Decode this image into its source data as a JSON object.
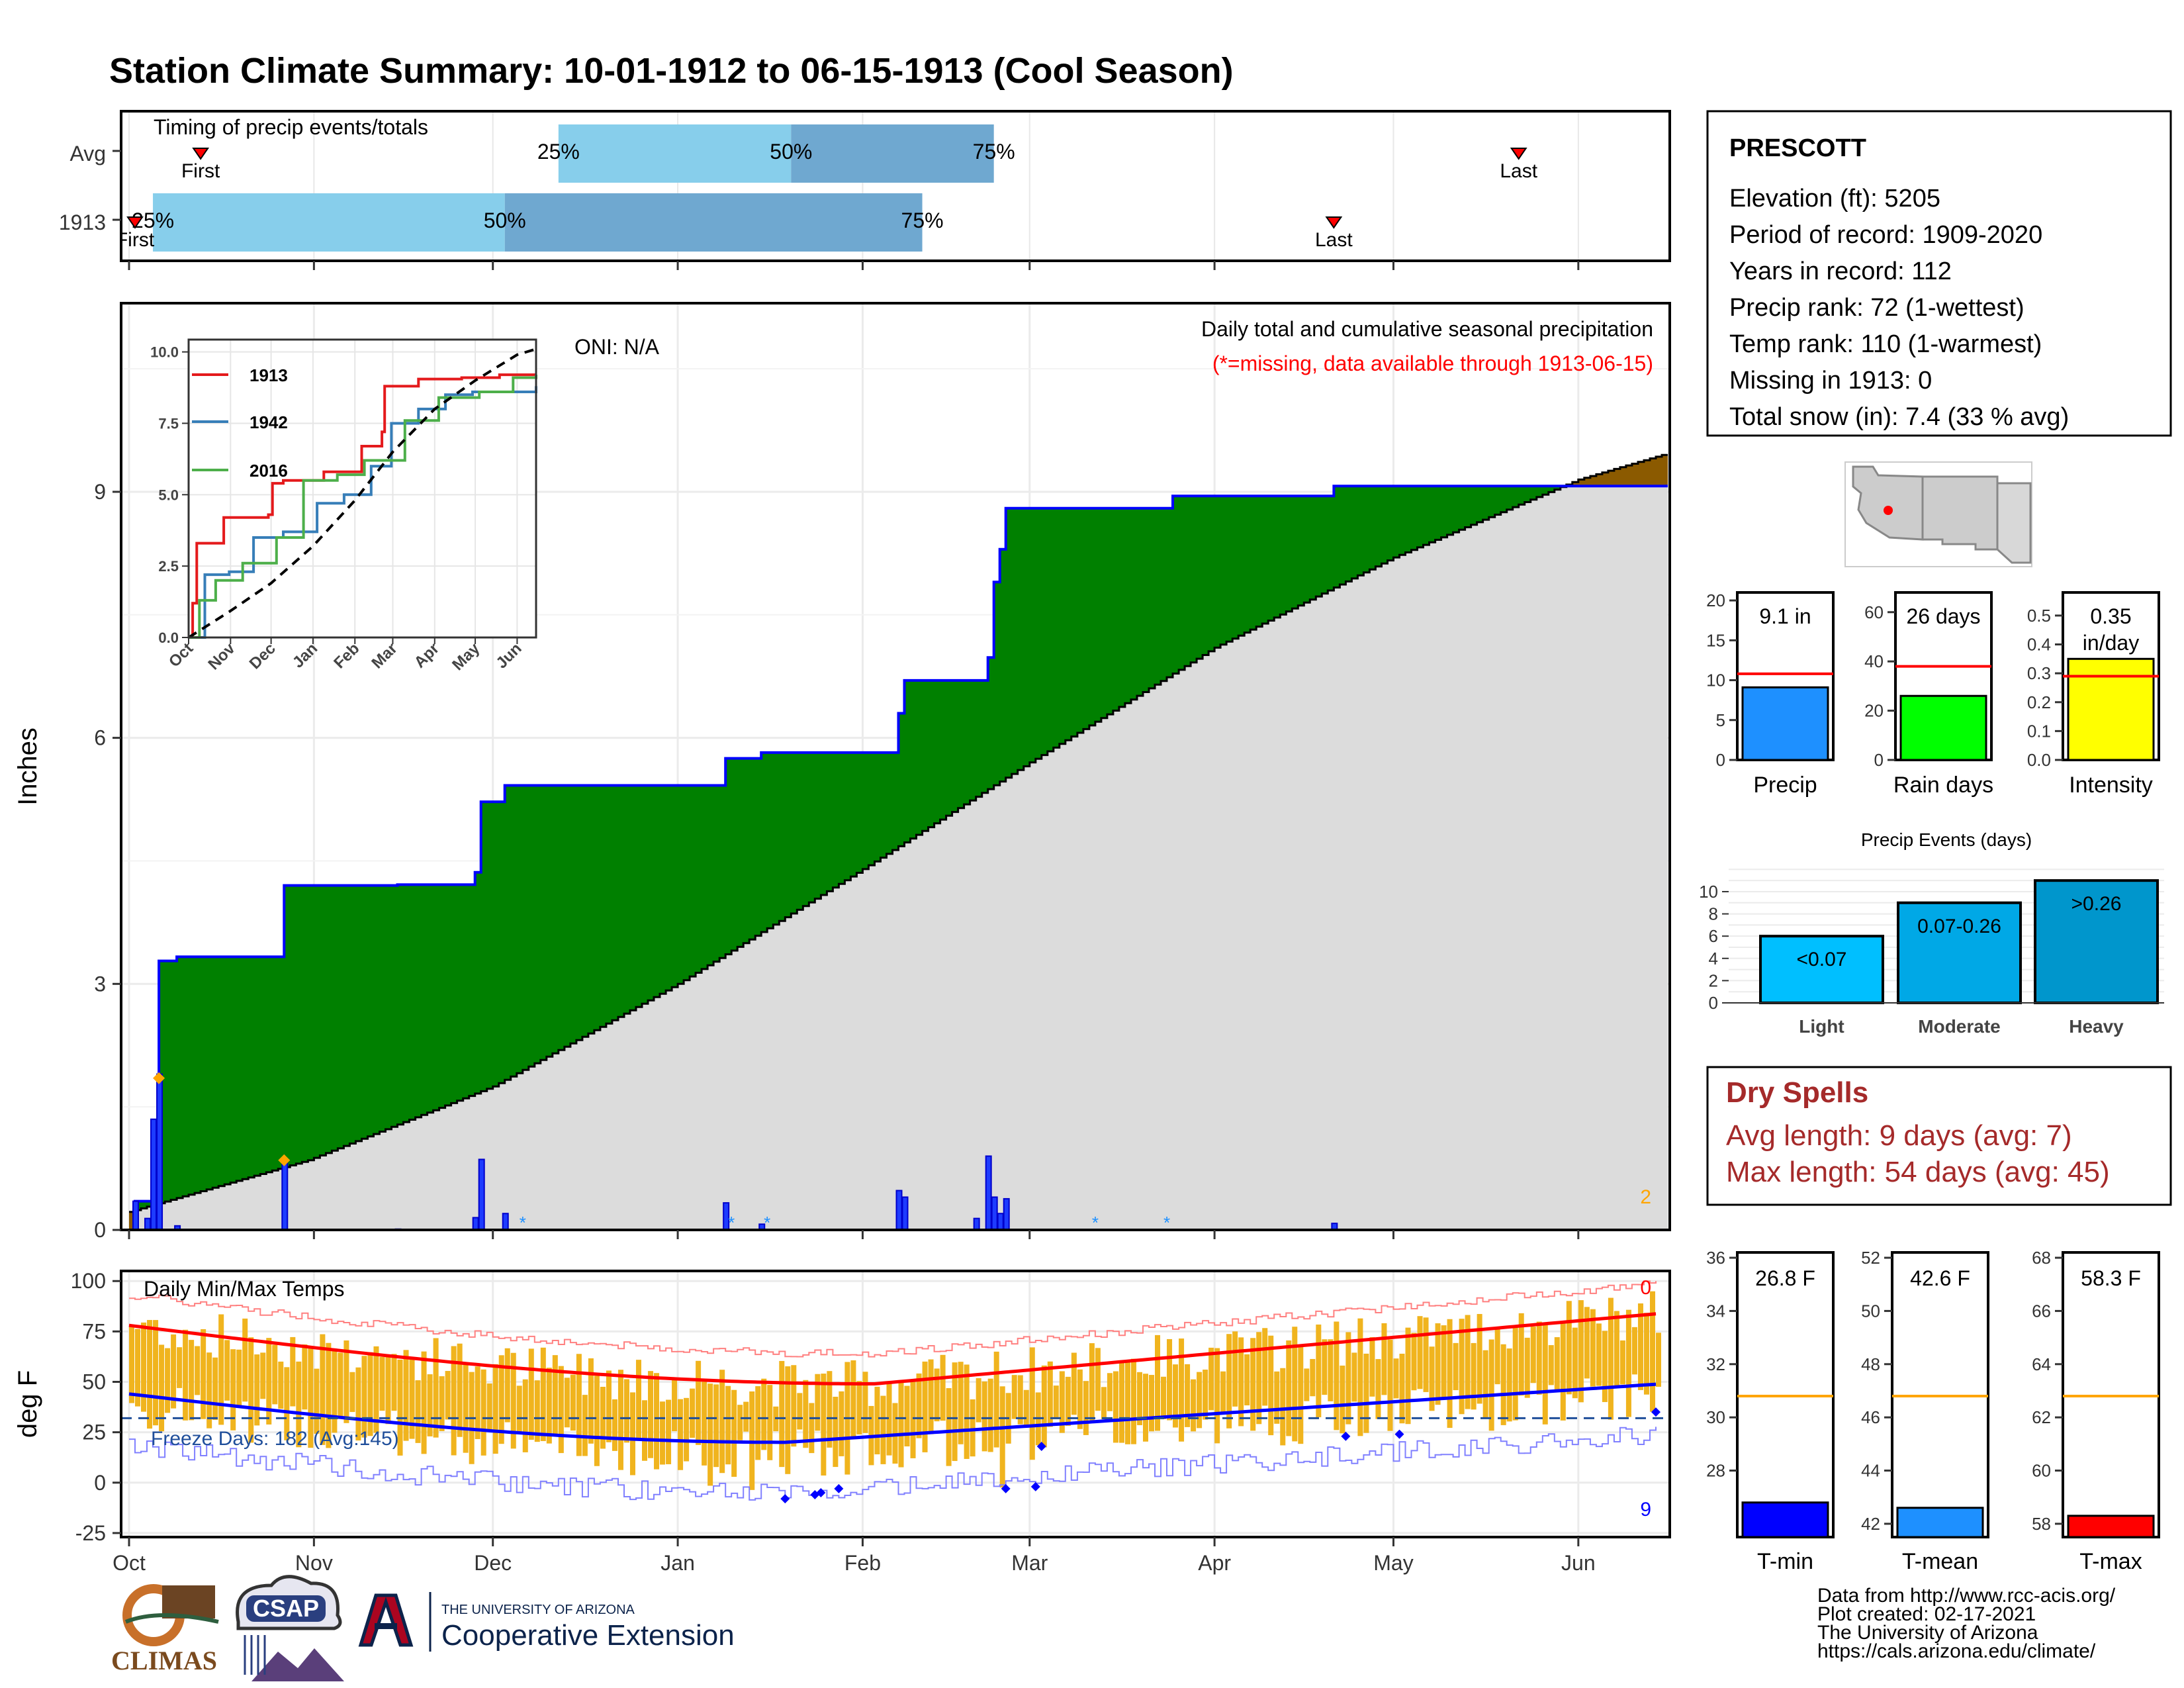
{
  "title": "Station Climate Summary: 10-01-1912 to 06-15-1913 (Cool Season)",
  "colors": {
    "title": "#2b3f87",
    "precip_fill": "#008000",
    "precip_line": "#0000ff",
    "avg_fill": "#dcdcdc",
    "surplus_fill": "#8b5a00",
    "temp_bar": "#f0b41e",
    "tmax_line": "#ff0000",
    "tmin_line": "#0000ff",
    "quartile_light": "#87ceeb",
    "quartile_dark": "#6fa8d0",
    "dry_spells": "#a52a2a"
  },
  "timing": {
    "label": "Timing of precip events/totals",
    "rows": [
      {
        "name": "Avg",
        "first": "First",
        "p25": "25%",
        "p50": "50%",
        "p75": "75%",
        "last": "Last",
        "p25_date": "1912-12-12",
        "p50_date": "1913-01-20",
        "p75_date": "1913-02-23",
        "first_date": "1912-10-13",
        "last_date": "1913-05-22"
      },
      {
        "name": "1913",
        "first": "First",
        "p25": "25%",
        "p50": "50%",
        "p75": "75%",
        "last": "Last",
        "p25_date": "1912-10-05",
        "p50_date": "1912-12-03",
        "p75_date": "1913-02-11",
        "first_date": "1912-10-02",
        "last_date": "1913-04-21"
      }
    ]
  },
  "station": {
    "name": "PRESCOTT",
    "lines": [
      "Elevation (ft): 5205",
      "Period of record: 1909-2020",
      "Years in record: 112",
      "Precip rank: 72 (1-wettest)",
      "Temp rank: 110 (1-warmest)",
      "Missing in 1913: 0",
      "Total snow (in): 7.4 (33 % avg)"
    ]
  },
  "main_chart": {
    "title": "Daily total and cumulative seasonal precipitation",
    "subtitle": "(*=missing, data available through 1913-06-15)",
    "oni": "ONI: N/A",
    "ylabel": "Inches",
    "corner_count": "2",
    "y_ticks": [
      0,
      3,
      6,
      9
    ],
    "ylim": [
      0,
      11.3
    ],
    "x_tick_labels": [
      "Oct",
      "Nov",
      "Dec",
      "Jan",
      "Feb",
      "Mar",
      "Apr",
      "May",
      "Jun"
    ],
    "x_tick_dates": [
      "1912-10-01",
      "1912-11-01",
      "1912-12-01",
      "1913-01-01",
      "1913-02-01",
      "1913-03-01",
      "1913-04-01",
      "1913-05-01",
      "1913-06-01"
    ]
  },
  "inset": {
    "y_ticks": [
      "0.0",
      "2.5",
      "5.0",
      "7.5",
      "10.0"
    ],
    "x_labels": [
      "Oct",
      "Nov",
      "Dec",
      "Jan",
      "Feb",
      "Mar",
      "Apr",
      "May",
      "Jun"
    ],
    "legend": [
      "1913",
      "1942",
      "2016"
    ],
    "series_colors": [
      "#e41a1c",
      "#377eb8",
      "#4daf4a"
    ]
  },
  "bars": [
    {
      "label": "Precip",
      "value_text": "9.1 in",
      "value": 9.1,
      "avg": 10.8,
      "ticks": [
        0,
        5,
        10,
        15,
        20
      ],
      "ymax": 21,
      "color": "#1e90ff"
    },
    {
      "label": "Rain days",
      "value_text": "26 days",
      "value": 26,
      "avg": 38,
      "ticks": [
        0,
        20,
        40,
        60
      ],
      "ymax": 68,
      "color": "#00ff00"
    },
    {
      "label": "Intensity",
      "value_text": "0.35 in/day",
      "value": 0.35,
      "avg": 0.29,
      "ticks": [
        "0.0",
        "0.1",
        "0.2",
        "0.3",
        "0.4",
        "0.5"
      ],
      "ymax": 0.58,
      "color": "#ffff00"
    }
  ],
  "events": {
    "title": "Precip Events (days)",
    "ticks": [
      0,
      2,
      4,
      6,
      8,
      10
    ],
    "items": [
      {
        "label": "Light",
        "range": "<0.07",
        "value": 6,
        "color": "#00bfff"
      },
      {
        "label": "Moderate",
        "range": "0.07-0.26",
        "value": 9,
        "color": "#00a8e6"
      },
      {
        "label": "Heavy",
        "range": ">0.26",
        "value": 11,
        "color": "#0096cc"
      }
    ]
  },
  "dry_spells": {
    "title": "Dry Spells",
    "avg_line": "Avg length: 9 days (avg: 7)",
    "max_line": "Max length: 54 days (avg: 45)"
  },
  "temp_chart": {
    "title": "Daily Min/Max Temps",
    "ylabel": "deg F",
    "freeze": "Freeze Days: 182 (Avg:145)",
    "count_top": "0",
    "count_bottom": "9",
    "y_ticks": [
      -25,
      0,
      25,
      50,
      75,
      100
    ],
    "ylim": [
      -27,
      105
    ]
  },
  "temp_bars": [
    {
      "label": "T-min",
      "value_text": "26.8 F",
      "value": 26.8,
      "avg": 30.8,
      "ticks": [
        28,
        30,
        32,
        34,
        36
      ],
      "ylim": [
        25.5,
        36.2
      ],
      "color": "#0000ff"
    },
    {
      "label": "T-mean",
      "value_text": "42.6 F",
      "value": 42.6,
      "avg": 46.8,
      "ticks": [
        42,
        44,
        46,
        48,
        50,
        52
      ],
      "ylim": [
        41.5,
        52.2
      ],
      "color": "#1e90ff"
    },
    {
      "label": "T-max",
      "value_text": "58.3 F",
      "value": 58.3,
      "avg": 62.8,
      "ticks": [
        58,
        60,
        62,
        64,
        66,
        68
      ],
      "ylim": [
        57.5,
        68.2
      ],
      "color": "#ff0000"
    }
  ],
  "footer": {
    "lines": [
      "Data from http://www.rcc-acis.org/",
      "Plot created: 02-17-2021",
      "The University of Arizona",
      "https://cals.arizona.edu/climate/"
    ]
  },
  "logos": {
    "climas": "CLIMAS",
    "csap": "CSAP",
    "ua_line1": "THE UNIVERSITY OF ARIZONA",
    "ua_line2": "Cooperative Extension"
  }
}
